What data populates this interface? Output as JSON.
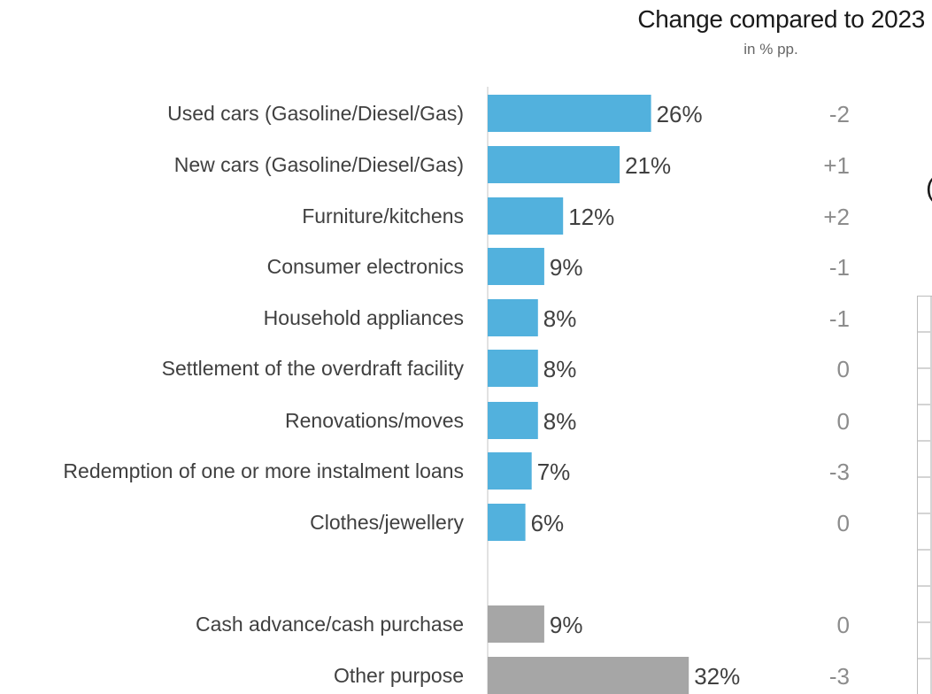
{
  "header": {
    "title": "Change compared to 2023",
    "subtitle": "in % pp."
  },
  "chart_data": {
    "type": "bar",
    "orientation": "horizontal",
    "value_suffix": "%",
    "xlim": [
      0,
      34
    ],
    "grid": false,
    "legend": "none",
    "colors": {
      "primary": "#52b1dd",
      "secondary": "#a6a6a6",
      "axis": "#d9d9d9",
      "label": "#404040",
      "change": "#8c8c8c"
    },
    "categories": [
      "Used cars (Gasoline/Diesel/Gas)",
      "New cars (Gasoline/Diesel/Gas)",
      "Furniture/kitchens",
      "Consumer electronics",
      "Household appliances",
      "Settlement of the overdraft facility",
      "Renovations/moves",
      "Redemption of one or more instalment loans",
      "Clothes/jewellery",
      "Cash advance/cash purchase",
      "Other purpose"
    ],
    "values": [
      26,
      21,
      12,
      9,
      8,
      8,
      8,
      7,
      6,
      9,
      32
    ],
    "groups": [
      "primary",
      "primary",
      "primary",
      "primary",
      "primary",
      "primary",
      "primary",
      "primary",
      "primary",
      "secondary",
      "secondary"
    ],
    "change_vs_2023": [
      "-2",
      "+1",
      "+2",
      "-1",
      "-1",
      "0",
      "0",
      "-3",
      "0",
      "0",
      "-3"
    ]
  }
}
